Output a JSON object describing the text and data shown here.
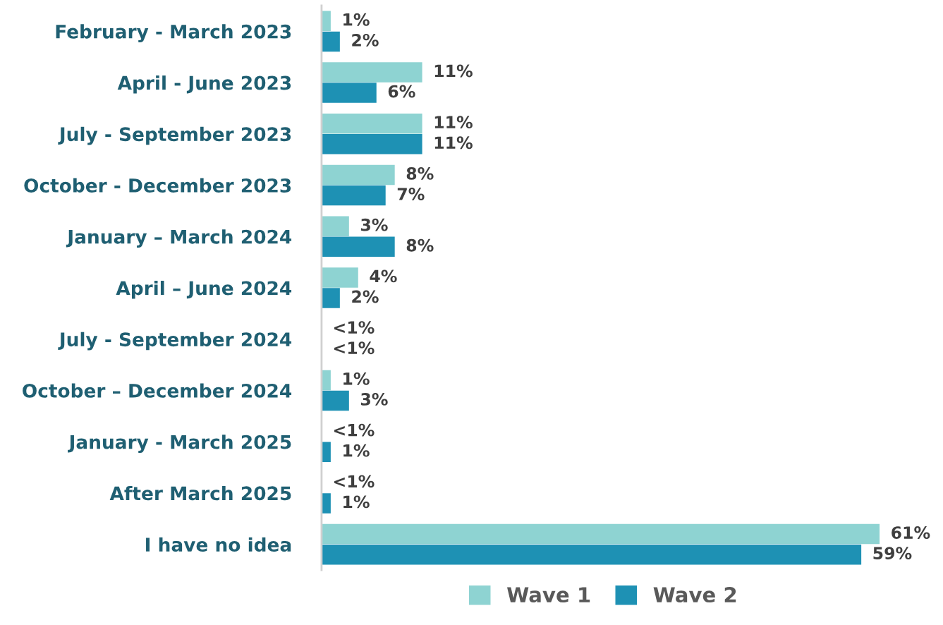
{
  "chart_data": {
    "type": "bar",
    "orientation": "horizontal",
    "categories": [
      "February - March 2023",
      "April - June 2023",
      "July - September 2023",
      "October - December 2023",
      "January – March 2024",
      "April – June 2024",
      "July - September 2024",
      "October – December 2024",
      "January - March 2025",
      "After March 2025",
      "I have no idea"
    ],
    "series": [
      {
        "name": "Wave 1",
        "color": "#8ed3d2",
        "values": [
          1,
          11,
          11,
          8,
          3,
          4,
          0,
          1,
          0,
          0,
          61
        ],
        "value_labels": [
          "1%",
          "11%",
          "11%",
          "8%",
          "3%",
          "4%",
          "<1%",
          "1%",
          "<1%",
          "<1%",
          "61%"
        ]
      },
      {
        "name": "Wave 2",
        "color": "#1e91b4",
        "values": [
          2,
          6,
          11,
          7,
          8,
          2,
          0,
          3,
          1,
          1,
          59
        ],
        "value_labels": [
          "2%",
          "6%",
          "11%",
          "7%",
          "8%",
          "2%",
          "<1%",
          "3%",
          "1%",
          "1%",
          "59%"
        ]
      }
    ],
    "legend": "bottom",
    "grid": false
  }
}
